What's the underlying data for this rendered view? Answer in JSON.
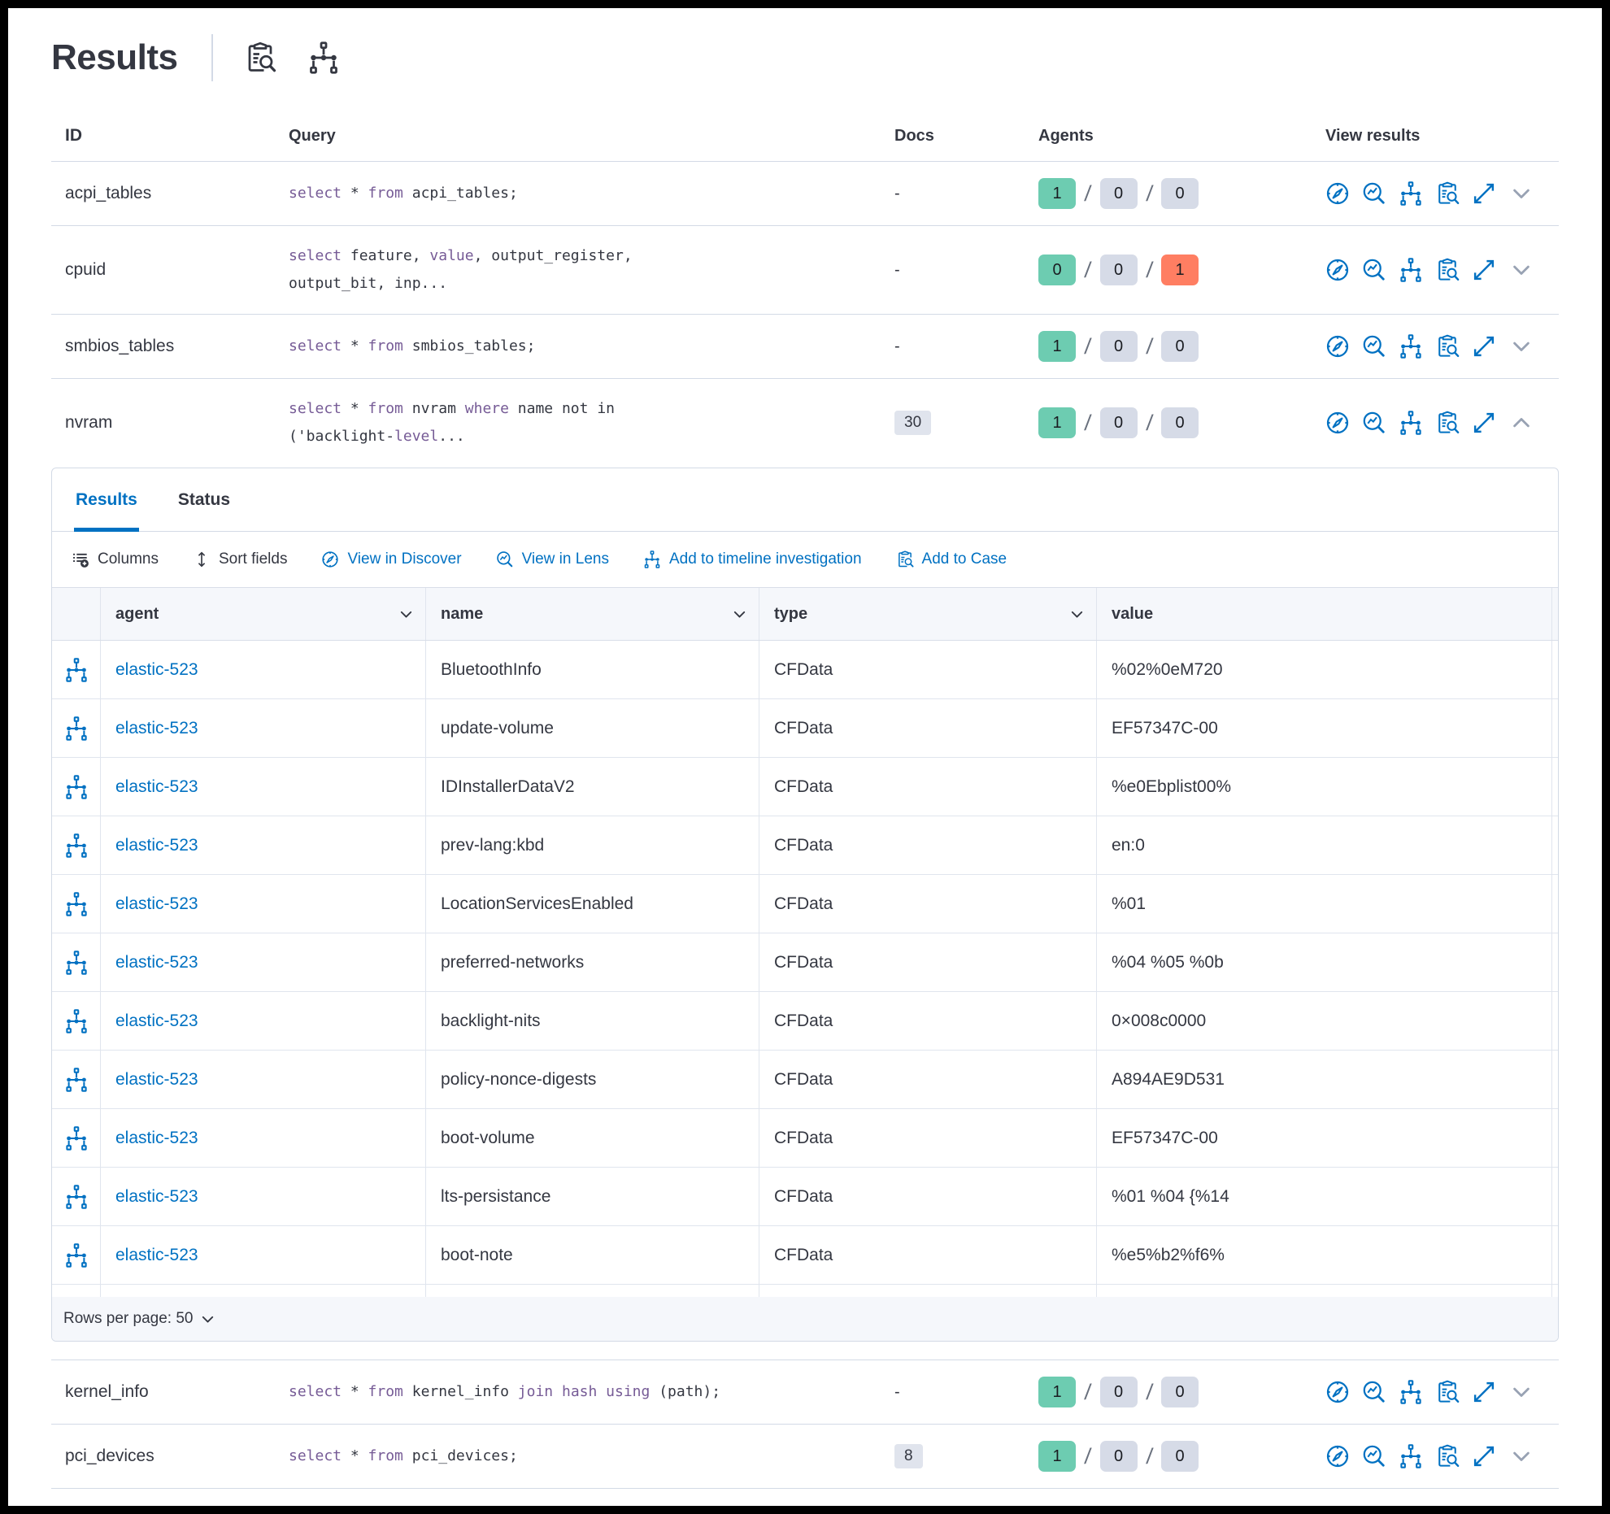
{
  "colors": {
    "accent_blue": "#0071C2",
    "success_green": "#6DCCB1",
    "danger_red": "#FF7E62",
    "badge_gray": "#D6DBE7",
    "keyword_purple": "#765B96",
    "text_dark": "#343741"
  },
  "header": {
    "title": "Results",
    "icons": [
      "clipboard-search-icon",
      "node-graph-icon"
    ]
  },
  "results_table": {
    "columns": [
      "ID",
      "Query",
      "Docs",
      "Agents",
      "View results"
    ],
    "agents_separator": "/",
    "action_icons": [
      "discover",
      "lens",
      "timeline",
      "case",
      "expand"
    ],
    "rows": [
      {
        "id": "acpi_tables",
        "query": [
          [
            {
              "t": "select",
              "k": true
            },
            {
              "t": " * "
            },
            {
              "t": "from",
              "k": true
            },
            {
              "t": " acpi_tables;"
            }
          ]
        ],
        "docs": "-",
        "docs_badge": false,
        "agents": [
          {
            "n": "1",
            "c": "success"
          },
          {
            "n": "0",
            "c": "default"
          },
          {
            "n": "0",
            "c": "default"
          }
        ],
        "expanded": false
      },
      {
        "id": "cpuid",
        "query": [
          [
            {
              "t": "select",
              "k": true
            },
            {
              "t": " feature, "
            },
            {
              "t": "value",
              "k": true
            },
            {
              "t": ", output_register,"
            }
          ],
          [
            {
              "t": "output_bit, inp..."
            }
          ]
        ],
        "docs": "-",
        "docs_badge": false,
        "agents": [
          {
            "n": "0",
            "c": "success"
          },
          {
            "n": "0",
            "c": "default"
          },
          {
            "n": "1",
            "c": "danger"
          }
        ],
        "expanded": false
      },
      {
        "id": "smbios_tables",
        "query": [
          [
            {
              "t": "select",
              "k": true
            },
            {
              "t": " * "
            },
            {
              "t": "from",
              "k": true
            },
            {
              "t": " smbios_tables;"
            }
          ]
        ],
        "docs": "-",
        "docs_badge": false,
        "agents": [
          {
            "n": "1",
            "c": "success"
          },
          {
            "n": "0",
            "c": "default"
          },
          {
            "n": "0",
            "c": "default"
          }
        ],
        "expanded": false
      },
      {
        "id": "nvram",
        "query": [
          [
            {
              "t": "select",
              "k": true
            },
            {
              "t": " * "
            },
            {
              "t": "from",
              "k": true
            },
            {
              "t": " nvram "
            },
            {
              "t": "where",
              "k": true
            },
            {
              "t": " name not in"
            }
          ],
          [
            {
              "t": "('backlight-"
            },
            {
              "t": "level",
              "k": true
            },
            {
              "t": "..."
            }
          ]
        ],
        "docs": "30",
        "docs_badge": true,
        "agents": [
          {
            "n": "1",
            "c": "success"
          },
          {
            "n": "0",
            "c": "default"
          },
          {
            "n": "0",
            "c": "default"
          }
        ],
        "expanded": true
      },
      {
        "id": "kernel_info",
        "query": [
          [
            {
              "t": "select",
              "k": true
            },
            {
              "t": " * "
            },
            {
              "t": "from",
              "k": true
            },
            {
              "t": " kernel_info "
            },
            {
              "t": "join hash using",
              "k": true
            },
            {
              "t": " (path);"
            }
          ]
        ],
        "docs": "-",
        "docs_badge": false,
        "agents": [
          {
            "n": "1",
            "c": "success"
          },
          {
            "n": "0",
            "c": "default"
          },
          {
            "n": "0",
            "c": "default"
          }
        ],
        "expanded": false
      },
      {
        "id": "pci_devices",
        "query": [
          [
            {
              "t": "select",
              "k": true
            },
            {
              "t": " * "
            },
            {
              "t": "from",
              "k": true
            },
            {
              "t": " pci_devices;"
            }
          ]
        ],
        "docs": "8",
        "docs_badge": true,
        "agents": [
          {
            "n": "1",
            "c": "success"
          },
          {
            "n": "0",
            "c": "default"
          },
          {
            "n": "0",
            "c": "default"
          }
        ],
        "expanded": false
      }
    ]
  },
  "expanded_panel": {
    "tabs": [
      {
        "label": "Results",
        "active": true
      },
      {
        "label": "Status",
        "active": false
      }
    ],
    "toolbar": [
      {
        "label": "Columns",
        "icon": "columns",
        "style": "dark"
      },
      {
        "label": "Sort fields",
        "icon": "sort",
        "style": "dark"
      },
      {
        "label": "View in Discover",
        "icon": "discover",
        "style": "link"
      },
      {
        "label": "View in Lens",
        "icon": "lens",
        "style": "link"
      },
      {
        "label": "Add to timeline investigation",
        "icon": "timeline",
        "style": "link"
      },
      {
        "label": "Add to Case",
        "icon": "case",
        "style": "link"
      }
    ],
    "grid": {
      "columns": [
        {
          "key": "agent",
          "label": "agent",
          "sortable": true
        },
        {
          "key": "name",
          "label": "name",
          "sortable": true
        },
        {
          "key": "type",
          "label": "type",
          "sortable": true
        },
        {
          "key": "value",
          "label": "value",
          "sortable": false
        }
      ],
      "rows": [
        {
          "agent": "elastic-523",
          "name": "BluetoothInfo",
          "type": "CFData",
          "value": "%02%0eM720"
        },
        {
          "agent": "elastic-523",
          "name": "update-volume",
          "type": "CFData",
          "value": "EF57347C-00"
        },
        {
          "agent": "elastic-523",
          "name": "IDInstallerDataV2",
          "type": "CFData",
          "value": "%e0Ebplist00%"
        },
        {
          "agent": "elastic-523",
          "name": "prev-lang:kbd",
          "type": "CFData",
          "value": "en:0"
        },
        {
          "agent": "elastic-523",
          "name": "LocationServicesEnabled",
          "type": "CFData",
          "value": "%01"
        },
        {
          "agent": "elastic-523",
          "name": "preferred-networks",
          "type": "CFData",
          "value": "%04 %05 %0b"
        },
        {
          "agent": "elastic-523",
          "name": "backlight-nits",
          "type": "CFData",
          "value": "0×008c0000"
        },
        {
          "agent": "elastic-523",
          "name": "policy-nonce-digests",
          "type": "CFData",
          "value": "A894AE9D531"
        },
        {
          "agent": "elastic-523",
          "name": "boot-volume",
          "type": "CFData",
          "value": "EF57347C-00"
        },
        {
          "agent": "elastic-523",
          "name": "lts-persistance",
          "type": "CFData",
          "value": "%01 %04 {%14"
        },
        {
          "agent": "elastic-523",
          "name": "boot-note",
          "type": "CFData",
          "value": "%e5%b2%f6%"
        }
      ]
    },
    "footer": {
      "rows_per_page": "Rows per page: 50"
    }
  }
}
